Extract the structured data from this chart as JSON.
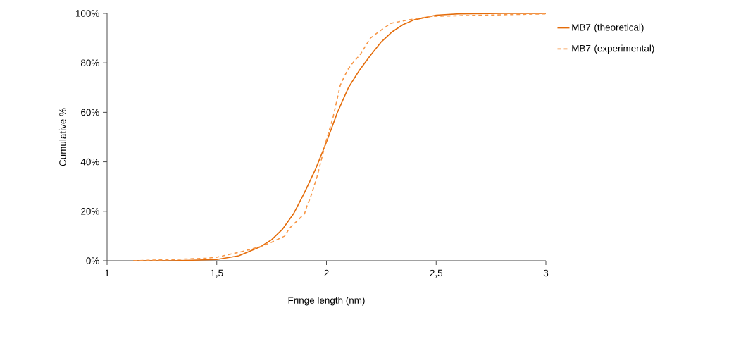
{
  "chart_data": {
    "type": "line",
    "xlabel": "Fringe length (nm)",
    "ylabel": "Cumulative %",
    "xlim": [
      1,
      3
    ],
    "ylim": [
      0,
      100
    ],
    "xticks": [
      1,
      {
        "value": 1.5,
        "label": "1,5"
      },
      2,
      {
        "value": 2.5,
        "label": "2,5"
      },
      3
    ],
    "yticks": [
      {
        "value": 0,
        "label": "0%"
      },
      {
        "value": 20,
        "label": "20%"
      },
      {
        "value": 40,
        "label": "40%"
      },
      {
        "value": 60,
        "label": "60%"
      },
      {
        "value": 80,
        "label": "80%"
      },
      {
        "value": 100,
        "label": "100%"
      }
    ],
    "grid": false,
    "legend": "right",
    "series": [
      {
        "name": "MB7 (theoretical)",
        "color": "#e46c0a",
        "line_style": "solid",
        "x": [
          1.12,
          1.3,
          1.5,
          1.6,
          1.7,
          1.75,
          1.8,
          1.85,
          1.9,
          1.95,
          2.0,
          2.05,
          2.1,
          2.15,
          2.2,
          2.25,
          2.3,
          2.35,
          2.4,
          2.5,
          2.6,
          2.8,
          3.0
        ],
        "values": [
          0,
          0,
          0.5,
          2,
          5.7,
          8.5,
          12.8,
          19,
          27.6,
          37,
          48,
          60,
          70,
          77,
          83,
          88.5,
          92.6,
          95.5,
          97.4,
          99.3,
          99.8,
          100,
          100
        ]
      },
      {
        "name": "MB7 (experimental)",
        "color": "#f79646",
        "line_style": "dashed",
        "x": [
          1.12,
          1.3,
          1.45,
          1.5,
          1.6,
          1.7,
          1.75,
          1.81,
          1.83,
          1.9,
          1.914,
          1.925,
          1.957,
          2.0,
          2.03,
          2.063,
          2.095,
          2.12,
          2.155,
          2.2,
          2.245,
          2.294,
          2.374,
          2.48,
          2.67,
          3.0
        ],
        "values": [
          0,
          0.5,
          1,
          1.4,
          3.4,
          5.7,
          7.5,
          10,
          13,
          19,
          23,
          25,
          34,
          49,
          58,
          71,
          77,
          80,
          83.5,
          90,
          93,
          96,
          97.4,
          98.8,
          99.2,
          99.8
        ]
      }
    ]
  }
}
